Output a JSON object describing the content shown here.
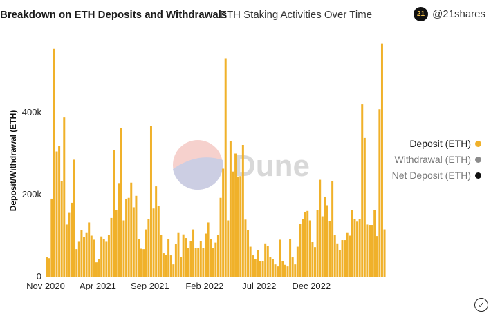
{
  "header": {
    "title": "Breakdown on ETH Deposits and Withdrawals",
    "subtitle": "ETH Staking Activities Over Time",
    "brand_logo_text": "21",
    "brand_handle": "@21shares"
  },
  "watermark": {
    "text": "Dune"
  },
  "legend": [
    {
      "label": "Deposit (ETH)",
      "color": "#f0b12a",
      "muted": false
    },
    {
      "label": "Withdrawal (ETH)",
      "color": "#8c8c8c",
      "muted": true
    },
    {
      "label": "Net Deposit (ETH)",
      "color": "#111111",
      "muted": true
    }
  ],
  "colors": {
    "bar": "#f0b12a",
    "check": "#222222"
  },
  "icons": {
    "check": "check-circle-icon"
  },
  "chart_data": {
    "type": "bar",
    "ylabel": "Deposit/Withdrawal (ETH)",
    "ylim": [
      0,
      600000
    ],
    "yticks": [
      0,
      200000,
      400000
    ],
    "ytick_labels": [
      "0",
      "200k",
      "400k"
    ],
    "xtick_labels": [
      "Nov 2020",
      "Apr 2021",
      "Sep 2021",
      "Feb 2022",
      "Jul 2022",
      "Dec 2022"
    ],
    "xtick_positions": [
      0,
      21,
      42,
      64,
      86,
      107
    ],
    "grid": false,
    "legend_position": "right",
    "series": [
      {
        "name": "Deposit (ETH)",
        "values": [
          47000,
          45000,
          190000,
          555000,
          305000,
          318000,
          232000,
          388000,
          127000,
          157000,
          180000,
          285000,
          67000,
          85000,
          113000,
          97000,
          108000,
          132000,
          100000,
          90000,
          35000,
          43000,
          98000,
          91000,
          85000,
          101000,
          143000,
          308000,
          162000,
          228000,
          362000,
          137000,
          190000,
          192000,
          229000,
          169000,
          197000,
          91000,
          68000,
          67000,
          115000,
          141000,
          367000,
          166000,
          220000,
          173000,
          102000,
          57000,
          53000,
          91000,
          52000,
          30000,
          80000,
          108000,
          48000,
          103000,
          94000,
          70000,
          86000,
          115000,
          69000,
          70000,
          87000,
          69000,
          105000,
          132000,
          91000,
          70000,
          83000,
          102000,
          192000,
          263000,
          532000,
          137000,
          331000,
          256000,
          300000,
          244000,
          245000,
          321000,
          139000,
          113000,
          73000,
          52000,
          42000,
          65000,
          37000,
          37000,
          81000,
          75000,
          48000,
          43000,
          30000,
          25000,
          90000,
          38000,
          29000,
          25000,
          91000,
          47000,
          30000,
          73000,
          129000,
          141000,
          158000,
          160000,
          137000,
          84000,
          72000,
          163000,
          236000,
          147000,
          195000,
          174000,
          135000,
          232000,
          102000,
          81000,
          65000,
          89000,
          89000,
          108000,
          100000,
          163000,
          140000,
          134000,
          140000,
          420000,
          338000,
          127000,
          126000,
          126000,
          162000,
          99000,
          408000,
          567000,
          115000
        ]
      }
    ]
  }
}
